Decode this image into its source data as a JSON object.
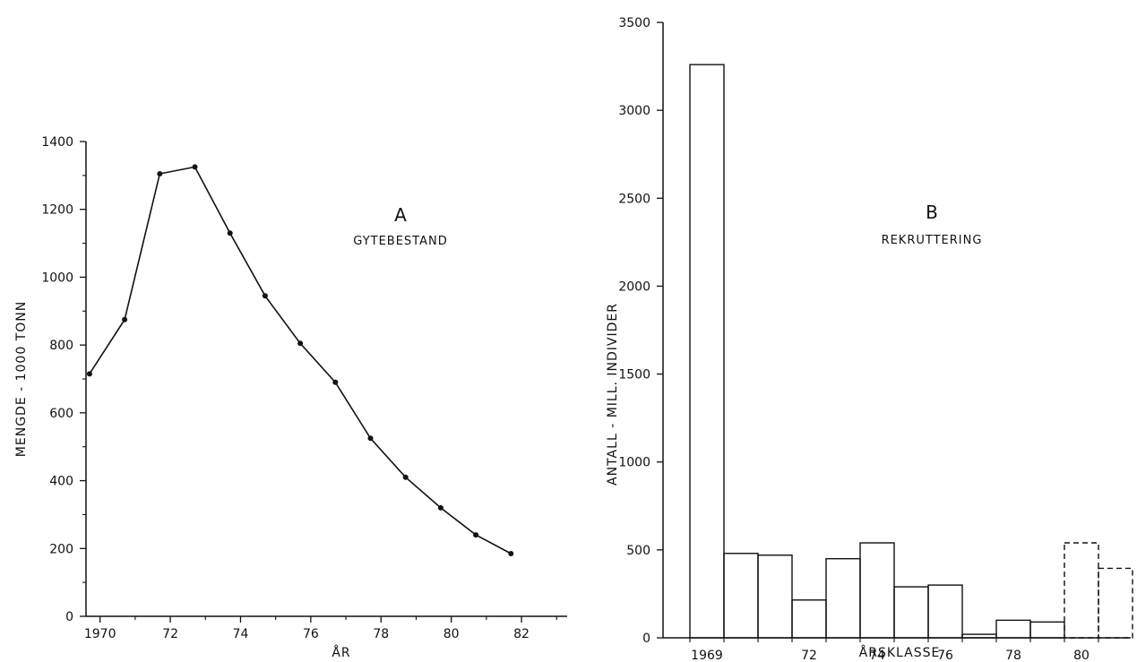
{
  "chart_data": [
    {
      "type": "line",
      "panel_letter": "A",
      "title": "GYTEBESTAND",
      "xlabel": "ÅR",
      "ylabel": "MENGDE - 1000 TONN",
      "xlim": [
        1969.6,
        1983.3
      ],
      "ylim": [
        0,
        1400
      ],
      "x_ticks": [
        1970,
        1972,
        1974,
        1976,
        1978,
        1980,
        1982
      ],
      "x_tick_labels": [
        "1970",
        "72",
        "74",
        "76",
        "78",
        "80",
        "82"
      ],
      "y_ticks": [
        0,
        200,
        400,
        600,
        800,
        1000,
        1200,
        1400
      ],
      "y_tick_labels": [
        "0",
        "200",
        "400",
        "600",
        "800",
        "1000",
        "1200",
        "1400"
      ],
      "grid": false,
      "series": [
        {
          "x": [
            1969.7,
            1970.7,
            1971.7,
            1972.7,
            1973.7,
            1974.7,
            1975.7,
            1976.7,
            1977.7,
            1978.7,
            1979.7,
            1980.7,
            1981.7
          ],
          "y": [
            715,
            875,
            1305,
            1325,
            1130,
            945,
            805,
            690,
            525,
            410,
            320,
            240,
            185
          ]
        }
      ]
    },
    {
      "type": "bar",
      "panel_letter": "B",
      "title": "REKRUTTERING",
      "xlabel": "ÅRSKLASSE",
      "ylabel": "ANTALL - MILL. INDIVIDER",
      "ylim": [
        0,
        3500
      ],
      "y_ticks": [
        0,
        500,
        1000,
        1500,
        2000,
        2500,
        3000,
        3500
      ],
      "y_tick_labels": [
        "0",
        "500",
        "1000",
        "1500",
        "2000",
        "2500",
        "3000",
        "3500"
      ],
      "x_tick_labels": [
        "1969",
        "72",
        "74",
        "76",
        "78",
        "80"
      ],
      "grid": false,
      "categories": [
        1969,
        1970,
        1971,
        1972,
        1973,
        1974,
        1975,
        1976,
        1977,
        1978,
        1979,
        1980,
        1981
      ],
      "values": [
        3260,
        480,
        470,
        215,
        450,
        540,
        290,
        300,
        20,
        100,
        90,
        540,
        395
      ],
      "estimated_dashed": [
        false,
        false,
        false,
        false,
        false,
        false,
        false,
        false,
        false,
        false,
        false,
        true,
        true
      ]
    }
  ]
}
